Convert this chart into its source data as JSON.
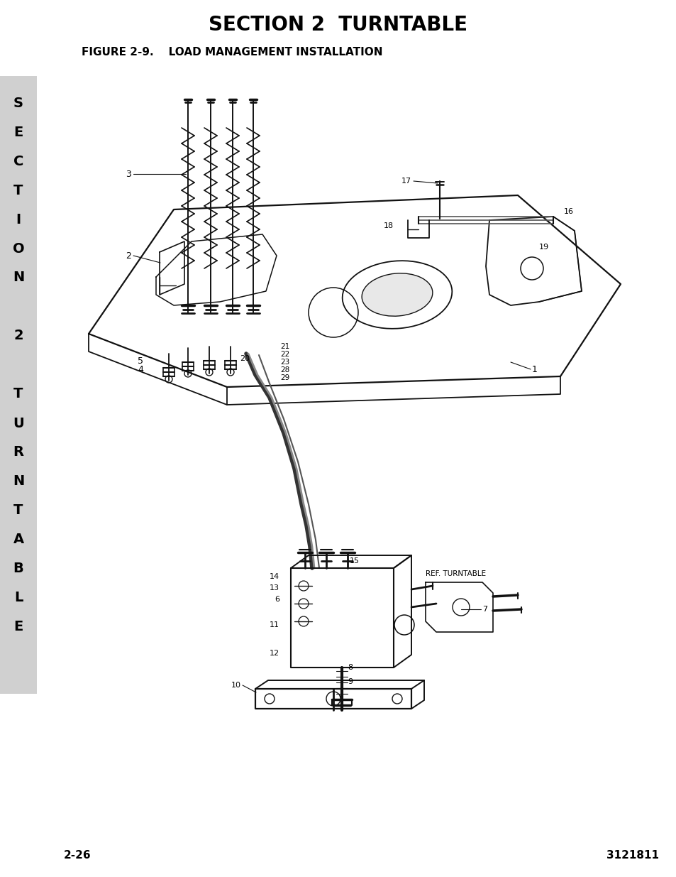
{
  "title": "SECTION 2  TURNTABLE",
  "figure_label": "FIGURE 2-9.    LOAD MANAGEMENT INSTALLATION",
  "page_number": "2-26",
  "doc_number": "3121811",
  "side_tab_letters": [
    "S",
    "E",
    "C",
    "T",
    "I",
    "O",
    "N",
    " ",
    "2",
    " ",
    "T",
    "U",
    "R",
    "N",
    "T",
    "A",
    "B",
    "L",
    "E"
  ],
  "bg_color": "#ffffff",
  "tab_bg_color": "#d0d0d0",
  "tab_text_color": "#000000",
  "title_fontsize": 20,
  "figure_label_fontsize": 11,
  "footer_fontsize": 11
}
